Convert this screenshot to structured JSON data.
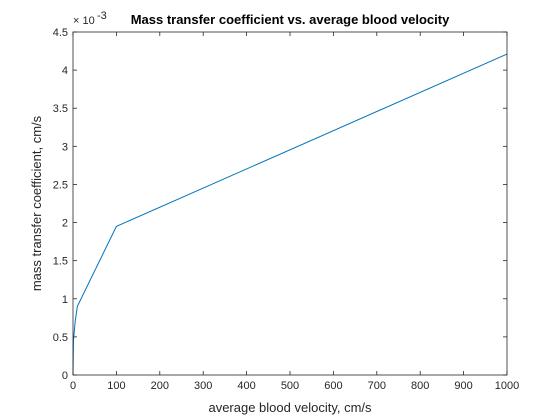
{
  "chart_data": {
    "type": "line",
    "title": "Mass transfer coefficient vs. average blood velocity",
    "xlabel": "average blood velocity, cm/s",
    "ylabel": "mass transfer coefficient, cm/s",
    "y_exponent_base": "× 10",
    "y_exponent_power": "-3",
    "y_scale": 0.001,
    "xlim": [
      0,
      1000
    ],
    "ylim": [
      0,
      4.5
    ],
    "xticks": [
      0,
      100,
      200,
      300,
      400,
      500,
      600,
      700,
      800,
      900,
      1000
    ],
    "xtick_labels": [
      "0",
      "100",
      "200",
      "300",
      "400",
      "500",
      "600",
      "700",
      "800",
      "900",
      "1000"
    ],
    "yticks": [
      0,
      0.5,
      1,
      1.5,
      2,
      2.5,
      3,
      3.5,
      4,
      4.5
    ],
    "ytick_labels": [
      "0",
      "0.5",
      "1",
      "1.5",
      "2",
      "2.5",
      "3",
      "3.5",
      "4",
      "4.5"
    ],
    "grid": false,
    "box": true,
    "series": [
      {
        "color": "#0072bd",
        "x": [
          0,
          1,
          5,
          10,
          100,
          1000
        ],
        "y": [
          0.0,
          0.45,
          0.7,
          0.9,
          1.95,
          4.21
        ]
      }
    ]
  }
}
